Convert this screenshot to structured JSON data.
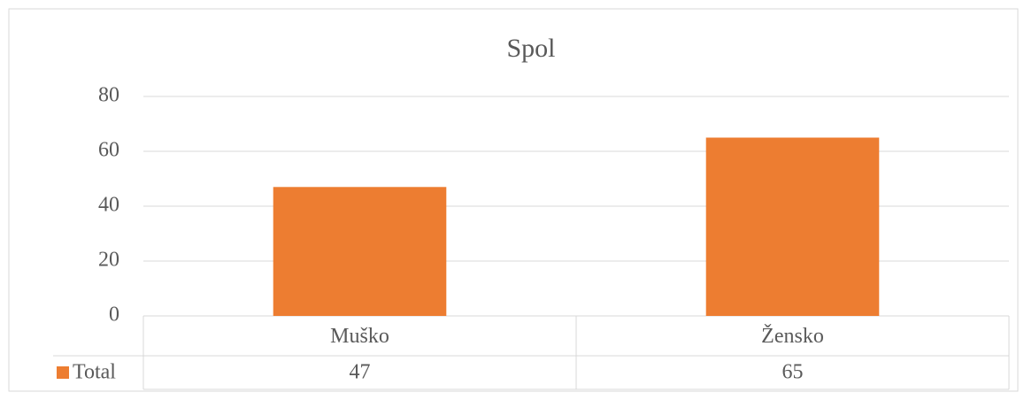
{
  "chart_data": {
    "type": "bar",
    "title": "Spol",
    "categories": [
      "Muško",
      "Žensko"
    ],
    "series": [
      {
        "name": "Total",
        "color": "#ed7d31",
        "values": [
          47,
          65
        ]
      }
    ],
    "ylim": [
      0,
      80
    ],
    "yticks": [
      0,
      20,
      40,
      60,
      80
    ],
    "grid": true
  }
}
